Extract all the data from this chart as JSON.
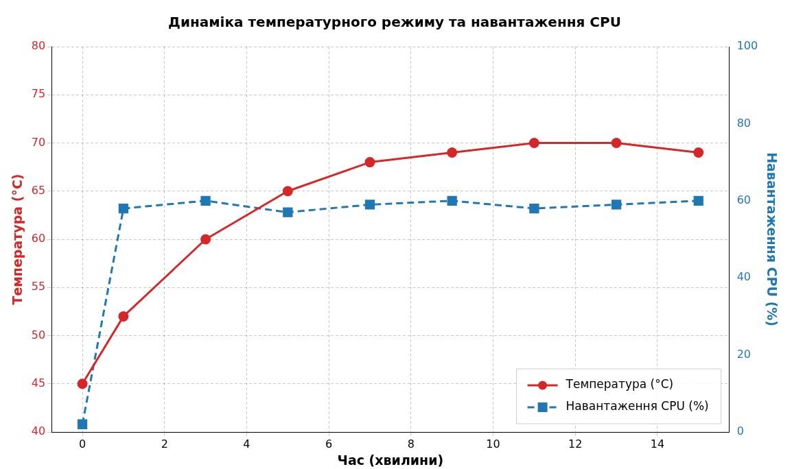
{
  "chart_data": {
    "type": "line",
    "title": "Динаміка температурного режиму та навантаження CPU",
    "xlabel": "Час (хвилини)",
    "ylabel": "Температура (°C)",
    "y2label": "Навантаження CPU (%)",
    "x": [
      0,
      1,
      3,
      5,
      7,
      9,
      11,
      13,
      15
    ],
    "series": [
      {
        "name": "Температура (°C)",
        "color": "#d62728",
        "values": [
          45,
          52,
          60,
          65,
          68,
          69,
          70,
          70,
          69
        ],
        "marker": "circle",
        "line_style": "solid"
      },
      {
        "name": "Навантаження CPU (%)",
        "color": "#1f77b4",
        "values": [
          2,
          58,
          60,
          57,
          59,
          60,
          58,
          59,
          60
        ],
        "axis": "y2",
        "marker": "square",
        "line_style": "dashed"
      }
    ],
    "xlim": [
      -0.75,
      15.75
    ],
    "xticks": [
      0,
      2,
      4,
      6,
      8,
      10,
      12,
      14
    ],
    "ylim": [
      40,
      80
    ],
    "yticks": [
      40,
      45,
      50,
      55,
      60,
      65,
      70,
      75,
      80
    ],
    "y2lim": [
      0,
      100
    ],
    "y2ticks": [
      0,
      20,
      40,
      60,
      80,
      100
    ],
    "grid": true,
    "legend": "bottom right"
  }
}
